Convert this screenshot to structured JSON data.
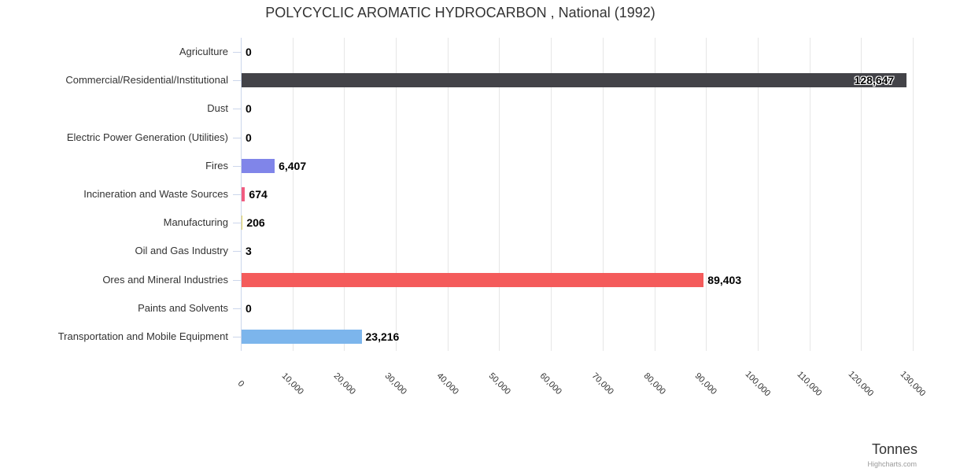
{
  "title": "POLYCYCLIC AROMATIC HYDROCARBON , National (1992)",
  "axis_title": "Tonnes",
  "credits_label": "Highcharts.com",
  "colors": {
    "title": "#333333",
    "category_label": "#333333",
    "value_label": "#000000",
    "gridline": "#e6e6e6",
    "axis_line": "#ccd6eb",
    "tick": "#ccd6eb",
    "xtick_label": "#333333",
    "credits": "#999999"
  },
  "chart_data": {
    "type": "bar",
    "orientation": "horizontal",
    "title": "POLYCYCLIC AROMATIC HYDROCARBON , National (1992)",
    "xlabel": "Tonnes",
    "xlim": [
      0,
      130000
    ],
    "tick_interval": 10000,
    "grid": true,
    "legend": false,
    "categories": [
      "Agriculture",
      "Commercial/Residential/Institutional",
      "Dust",
      "Electric Power Generation (Utilities)",
      "Fires",
      "Incineration and Waste Sources",
      "Manufacturing",
      "Oil and Gas Industry",
      "Ores and Mineral Industries",
      "Paints and Solvents",
      "Transportation and Mobile Equipment"
    ],
    "values": [
      0,
      128647,
      0,
      0,
      6407,
      674,
      206,
      3,
      89403,
      0,
      23216
    ],
    "value_labels": [
      "0",
      "128,647",
      "0",
      "0",
      "6,407",
      "674",
      "206",
      "3",
      "89,403",
      "0",
      "23,216"
    ],
    "bar_colors": [
      "#7cb5ec",
      "#434348",
      "#90ed7d",
      "#f7a35c",
      "#8085e9",
      "#f15c80",
      "#e4d354",
      "#2b908f",
      "#f45b5b",
      "#91e8e1",
      "#7cb5ec"
    ],
    "x_tick_labels": [
      "0",
      "10,000",
      "20,000",
      "30,000",
      "40,000",
      "50,000",
      "60,000",
      "70,000",
      "80,000",
      "90,000",
      "100,000",
      "110,000",
      "120,000",
      "130,000"
    ]
  }
}
